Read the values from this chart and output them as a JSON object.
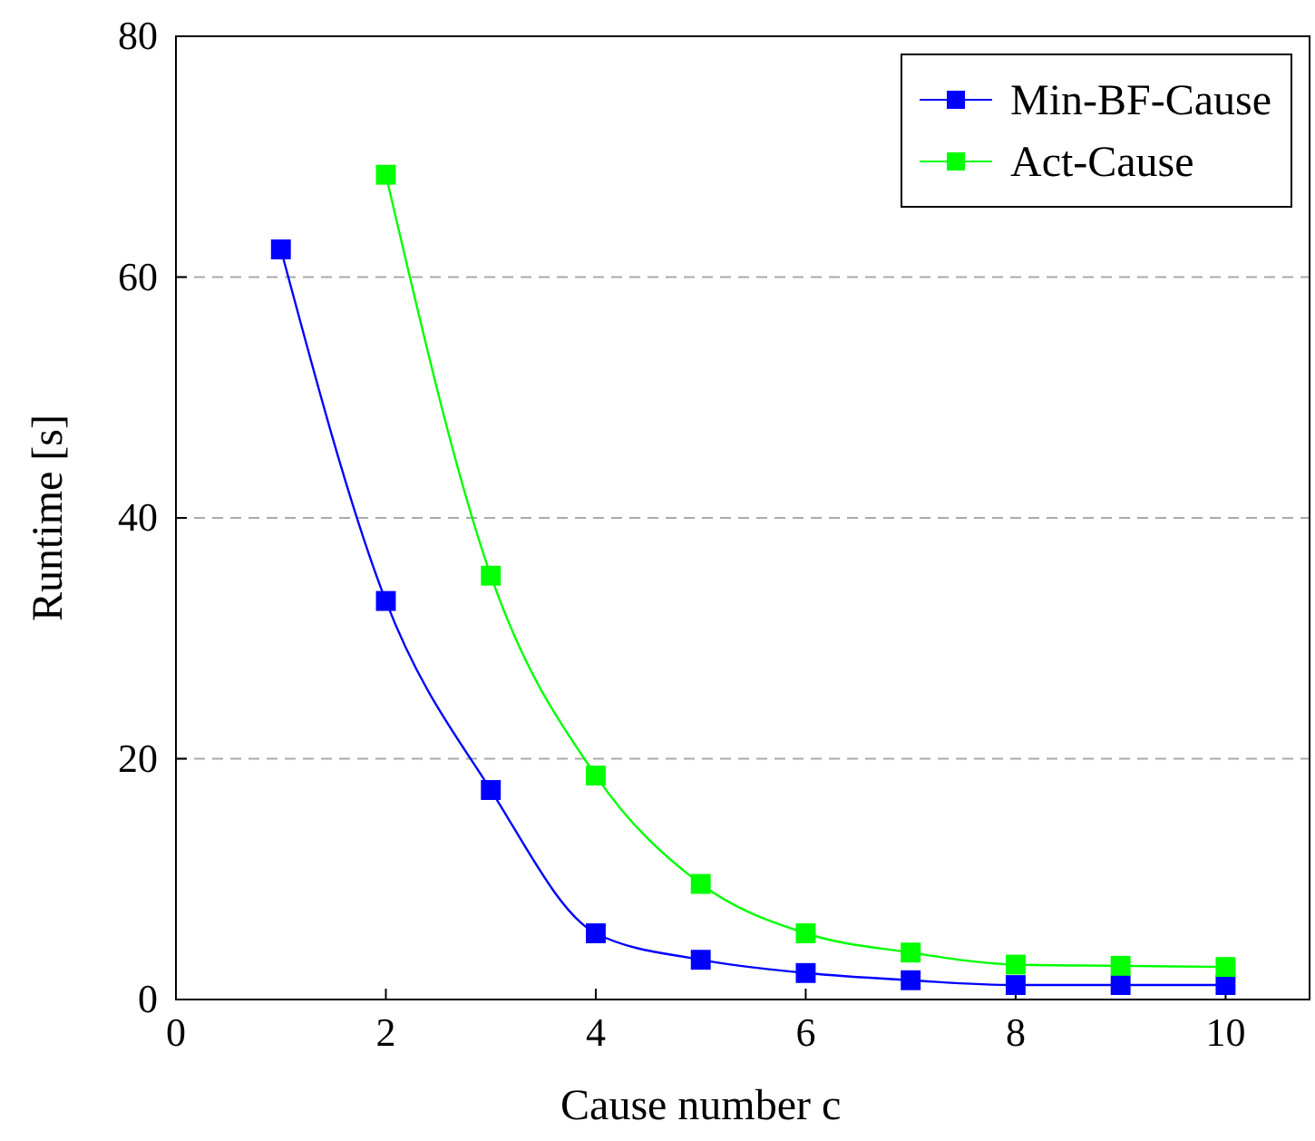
{
  "chart_data": {
    "type": "line",
    "xlabel": "Cause number c",
    "ylabel": "Runtime [s]",
    "x": [
      1,
      2,
      3,
      4,
      5,
      6,
      7,
      8,
      9,
      10
    ],
    "series": [
      {
        "name": "Min-BF-Cause",
        "color": "#0000ff",
        "values": [
          62.3,
          33.1,
          17.4,
          5.5,
          3.3,
          2.2,
          1.6,
          1.2,
          1.2,
          1.2
        ]
      },
      {
        "name": "Act-Cause",
        "color": "#00ff00",
        "values": [
          null,
          68.5,
          35.2,
          18.6,
          9.6,
          5.5,
          3.9,
          2.9,
          2.8,
          2.7
        ]
      }
    ],
    "xlim": [
      0,
      10.8
    ],
    "ylim": [
      0,
      80
    ],
    "xticks": [
      0,
      2,
      4,
      6,
      8,
      10
    ],
    "yticks": [
      0,
      20,
      40,
      60,
      80
    ],
    "grid": "y",
    "legend": "top right",
    "marker": "square",
    "line_style": "solid"
  }
}
